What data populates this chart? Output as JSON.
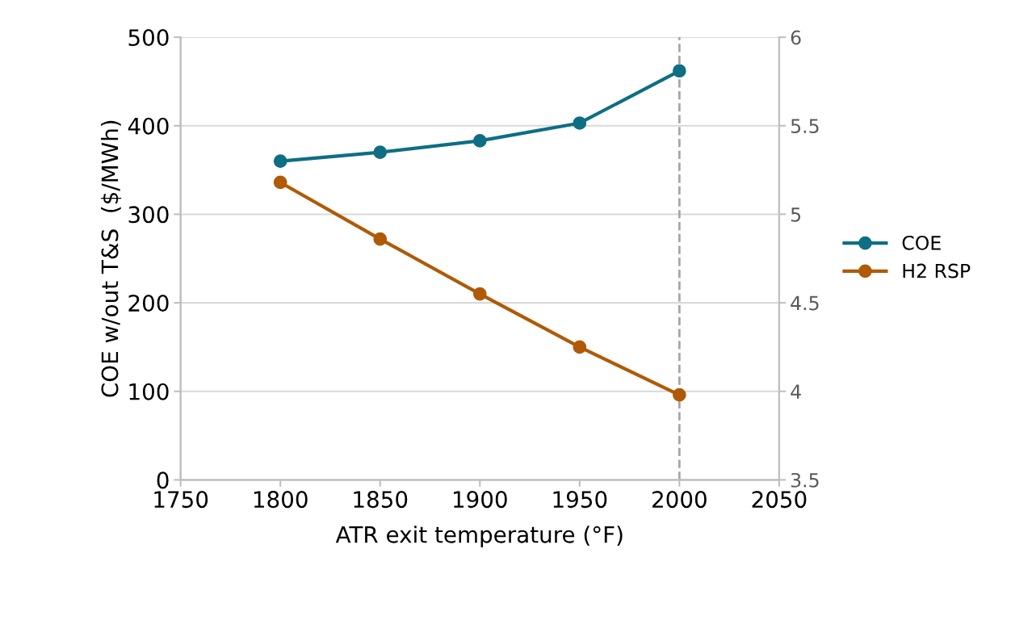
{
  "chart_data": {
    "type": "line",
    "xlabel": "ATR exit temperature (°F)",
    "ylabel": "COE w/out T&S  ($/MWh)",
    "x": [
      1800,
      1850,
      1900,
      1950,
      2000
    ],
    "series": [
      {
        "name": "COE",
        "color": "#0e6e84",
        "values": [
          360,
          370,
          383,
          403,
          462
        ]
      },
      {
        "name": "H2 RSP",
        "color": "#b05a06",
        "values": [
          5.18,
          4.86,
          4.55,
          4.25,
          3.98
        ],
        "axis": "y2"
      }
    ],
    "xlim": [
      1750,
      2050
    ],
    "xticks": [
      1750,
      1800,
      1850,
      1900,
      1950,
      2000,
      2050
    ],
    "ylim": [
      0,
      500
    ],
    "yticks": [
      0,
      100,
      200,
      300,
      400,
      500
    ],
    "y2lim": [
      3.5,
      6
    ],
    "y2ticks": [
      3.5,
      4,
      4.5,
      5,
      5.5,
      6
    ],
    "ref_lines": [
      {
        "axis": "x",
        "value": 2000,
        "color": "#a6a6a6",
        "line_style": "dashed"
      }
    ],
    "grid": "y",
    "legend": "right",
    "marker": "circle",
    "line_style": "solid"
  }
}
